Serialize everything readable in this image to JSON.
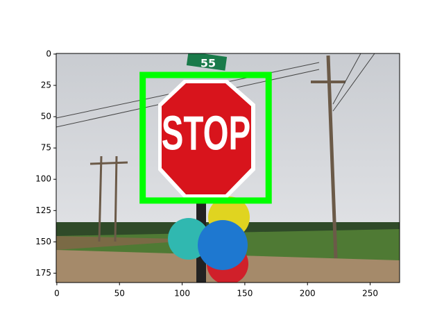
{
  "chart_data": {
    "type": "image",
    "sign_text": "STOP",
    "street_sign_text": "55",
    "xlim": [
      -0.5,
      273.5
    ],
    "ylim": [
      182.5,
      -0.5
    ],
    "xticks": [
      0,
      50,
      100,
      150,
      200,
      250
    ],
    "yticks": [
      0,
      25,
      50,
      75,
      100,
      125,
      150,
      175
    ],
    "box": {
      "x": [
        68.5,
        169
      ],
      "y": [
        16.7,
        117
      ],
      "color": "#00ff00"
    }
  }
}
